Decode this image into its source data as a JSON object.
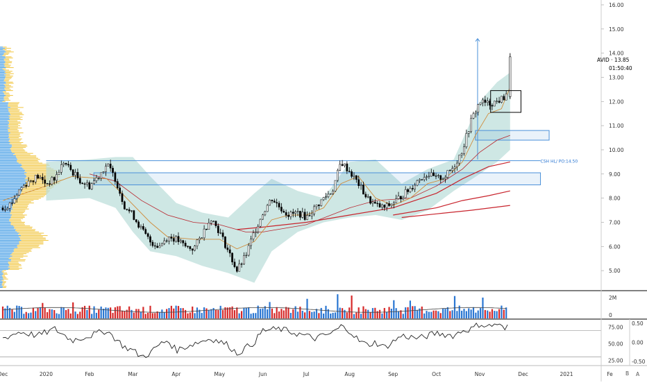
{
  "chart_data": {
    "type": "candlestick",
    "symbol": "AVID",
    "last_price": "13.85",
    "last_price_label": "AVID · 13.85",
    "countdown": "01:50:40",
    "annotation": "CSH HL/ PO:14.50",
    "price_axis": {
      "ticks": [
        "16.00",
        "15.00",
        "14.00",
        "13.00",
        "12.00",
        "11.00",
        "10.00",
        "9.00",
        "8.00",
        "7.00",
        "6.00",
        "5.00"
      ],
      "range": [
        4.2,
        16.2
      ]
    },
    "volume_axis": {
      "ticks": [
        "2M",
        "0"
      ]
    },
    "oscillator_axis_left": {
      "ticks": [
        "75.00",
        "50.00",
        "25.00"
      ],
      "range": [
        18,
        86
      ]
    },
    "oscillator_axis_right": {
      "ticks": [
        "0.50",
        "0.00",
        "-0.50"
      ]
    },
    "x_ticks": [
      "Dec",
      "2020",
      "Feb",
      "Mar",
      "Apr",
      "May",
      "Jun",
      "Jul",
      "Aug",
      "Sep",
      "Oct",
      "Nov",
      "Dec",
      "2021",
      "Fe"
    ],
    "x_range": [
      0,
      13.8
    ],
    "price_path": [
      [
        0.0,
        7.6
      ],
      [
        0.2,
        7.8
      ],
      [
        0.4,
        8.4
      ],
      [
        0.6,
        8.7
      ],
      [
        0.8,
        8.9
      ],
      [
        1.0,
        8.6
      ],
      [
        1.2,
        8.8
      ],
      [
        1.4,
        9.5
      ],
      [
        1.6,
        9.1
      ],
      [
        1.8,
        8.7
      ],
      [
        2.0,
        8.5
      ],
      [
        2.2,
        8.9
      ],
      [
        2.4,
        9.4
      ],
      [
        2.6,
        8.8
      ],
      [
        2.8,
        7.7
      ],
      [
        3.0,
        7.3
      ],
      [
        3.2,
        6.7
      ],
      [
        3.4,
        6.2
      ],
      [
        3.6,
        6.0
      ],
      [
        3.8,
        6.4
      ],
      [
        4.0,
        6.3
      ],
      [
        4.2,
        6.0
      ],
      [
        4.4,
        5.9
      ],
      [
        4.6,
        6.5
      ],
      [
        4.8,
        7.2
      ],
      [
        5.0,
        6.6
      ],
      [
        5.2,
        5.8
      ],
      [
        5.4,
        5.0
      ],
      [
        5.6,
        5.6
      ],
      [
        5.8,
        6.6
      ],
      [
        6.0,
        7.4
      ],
      [
        6.2,
        8.0
      ],
      [
        6.4,
        7.6
      ],
      [
        6.6,
        7.3
      ],
      [
        6.8,
        7.4
      ],
      [
        7.0,
        7.2
      ],
      [
        7.2,
        7.6
      ],
      [
        7.4,
        8.0
      ],
      [
        7.6,
        8.3
      ],
      [
        7.8,
        9.5
      ],
      [
        8.0,
        9.1
      ],
      [
        8.2,
        8.6
      ],
      [
        8.4,
        8.0
      ],
      [
        8.6,
        7.7
      ],
      [
        8.8,
        7.6
      ],
      [
        9.0,
        7.8
      ],
      [
        9.2,
        8.1
      ],
      [
        9.4,
        8.4
      ],
      [
        9.6,
        8.8
      ],
      [
        9.8,
        9.0
      ],
      [
        10.0,
        8.8
      ],
      [
        10.2,
        8.9
      ],
      [
        10.4,
        9.3
      ],
      [
        10.6,
        10.0
      ],
      [
        10.8,
        11.2
      ],
      [
        11.0,
        12.0
      ],
      [
        11.2,
        11.9
      ],
      [
        11.4,
        12.0
      ],
      [
        11.6,
        12.2
      ],
      [
        11.7,
        13.85
      ]
    ],
    "fast_ma": [
      [
        0.0,
        7.9
      ],
      [
        1.0,
        8.5
      ],
      [
        1.6,
        8.9
      ],
      [
        2.4,
        8.8
      ],
      [
        2.8,
        8.1
      ],
      [
        3.4,
        7.0
      ],
      [
        3.8,
        6.4
      ],
      [
        4.4,
        6.3
      ],
      [
        5.0,
        6.3
      ],
      [
        5.4,
        5.9
      ],
      [
        5.8,
        6.2
      ],
      [
        6.2,
        7.1
      ],
      [
        6.6,
        7.3
      ],
      [
        7.0,
        7.3
      ],
      [
        7.4,
        7.6
      ],
      [
        7.8,
        8.6
      ],
      [
        8.2,
        8.9
      ],
      [
        8.6,
        8.0
      ],
      [
        9.0,
        7.7
      ],
      [
        9.4,
        8.0
      ],
      [
        9.8,
        8.6
      ],
      [
        10.2,
        8.8
      ],
      [
        10.6,
        9.5
      ],
      [
        10.9,
        10.6
      ],
      [
        11.2,
        11.5
      ],
      [
        11.5,
        11.7
      ],
      [
        11.7,
        12.6
      ]
    ],
    "ma_red": [
      [
        2.0,
        9.0
      ],
      [
        2.6,
        8.7
      ],
      [
        3.2,
        7.9
      ],
      [
        3.8,
        7.3
      ],
      [
        4.4,
        7.0
      ],
      [
        5.0,
        6.9
      ],
      [
        5.6,
        6.6
      ],
      [
        6.0,
        6.6
      ],
      [
        7.0,
        6.9
      ],
      [
        8.0,
        7.6
      ],
      [
        8.6,
        7.9
      ],
      [
        9.4,
        8.0
      ],
      [
        10.0,
        8.5
      ],
      [
        10.6,
        9.2
      ],
      [
        11.0,
        9.9
      ],
      [
        11.4,
        10.4
      ],
      [
        11.7,
        10.6
      ]
    ],
    "ma_red2": [
      [
        5.4,
        6.7
      ],
      [
        6.0,
        6.8
      ],
      [
        7.0,
        7.0
      ],
      [
        8.0,
        7.3
      ],
      [
        9.0,
        7.6
      ],
      [
        10.0,
        8.2
      ],
      [
        10.6,
        8.8
      ],
      [
        11.2,
        9.3
      ],
      [
        11.7,
        9.5
      ]
    ],
    "ma_red3": [
      [
        9.0,
        7.3
      ],
      [
        10.0,
        7.6
      ],
      [
        10.6,
        7.9
      ],
      [
        11.2,
        8.1
      ],
      [
        11.7,
        8.3
      ]
    ],
    "ma_red4": [
      [
        9.2,
        7.2
      ],
      [
        10.0,
        7.35
      ],
      [
        10.8,
        7.5
      ],
      [
        11.7,
        7.7
      ]
    ],
    "bb_upper": [
      [
        1.0,
        9.5
      ],
      [
        2.0,
        9.6
      ],
      [
        2.6,
        9.7
      ],
      [
        3.0,
        9.7
      ],
      [
        3.4,
        8.9
      ],
      [
        4.0,
        7.8
      ],
      [
        4.6,
        7.4
      ],
      [
        5.2,
        7.2
      ],
      [
        5.8,
        8.2
      ],
      [
        6.2,
        8.8
      ],
      [
        6.8,
        8.3
      ],
      [
        7.4,
        8.0
      ],
      [
        8.0,
        9.5
      ],
      [
        8.6,
        9.6
      ],
      [
        9.2,
        8.6
      ],
      [
        9.8,
        9.2
      ],
      [
        10.4,
        9.6
      ],
      [
        11.0,
        12.0
      ],
      [
        11.4,
        12.8
      ],
      [
        11.7,
        13.2
      ]
    ],
    "bb_lower": [
      [
        1.0,
        7.9
      ],
      [
        2.0,
        8.0
      ],
      [
        2.6,
        7.6
      ],
      [
        3.0,
        6.6
      ],
      [
        3.4,
        5.8
      ],
      [
        4.0,
        5.6
      ],
      [
        4.6,
        5.2
      ],
      [
        5.2,
        4.9
      ],
      [
        5.8,
        4.5
      ],
      [
        6.2,
        5.8
      ],
      [
        6.8,
        6.6
      ],
      [
        7.4,
        7.0
      ],
      [
        8.0,
        7.2
      ],
      [
        8.6,
        7.3
      ],
      [
        9.2,
        7.1
      ],
      [
        9.8,
        7.5
      ],
      [
        10.4,
        8.3
      ],
      [
        11.0,
        9.0
      ],
      [
        11.4,
        9.5
      ],
      [
        11.7,
        10.0
      ]
    ],
    "oscillator": [
      [
        0.0,
        58
      ],
      [
        0.4,
        68
      ],
      [
        0.8,
        62
      ],
      [
        1.2,
        72
      ],
      [
        1.6,
        55
      ],
      [
        2.0,
        62
      ],
      [
        2.4,
        70
      ],
      [
        2.8,
        45
      ],
      [
        3.0,
        40
      ],
      [
        3.2,
        30
      ],
      [
        3.4,
        36
      ],
      [
        3.6,
        48
      ],
      [
        3.8,
        55
      ],
      [
        4.0,
        40
      ],
      [
        4.4,
        50
      ],
      [
        4.8,
        58
      ],
      [
        5.2,
        48
      ],
      [
        5.4,
        35
      ],
      [
        5.8,
        52
      ],
      [
        6.0,
        70
      ],
      [
        6.4,
        72
      ],
      [
        6.8,
        65
      ],
      [
        7.2,
        58
      ],
      [
        7.6,
        66
      ],
      [
        7.8,
        76
      ],
      [
        8.0,
        70
      ],
      [
        8.2,
        55
      ],
      [
        8.4,
        48
      ],
      [
        8.6,
        52
      ],
      [
        8.8,
        44
      ],
      [
        9.2,
        62
      ],
      [
        9.6,
        58
      ],
      [
        10.0,
        66
      ],
      [
        10.4,
        62
      ],
      [
        10.6,
        70
      ],
      [
        10.8,
        72
      ],
      [
        11.0,
        80
      ],
      [
        11.2,
        76
      ],
      [
        11.4,
        80
      ],
      [
        11.6,
        70
      ],
      [
        11.7,
        82
      ]
    ],
    "zones": [
      {
        "x0": 2.1,
        "x1": 12.4,
        "y0": 8.55,
        "y1": 9.05,
        "color": "#4a90d9"
      },
      {
        "x0": 10.9,
        "x1": 12.6,
        "y0": 10.4,
        "y1": 10.8,
        "color": "#4a90d9"
      }
    ],
    "consolidation_box": {
      "x0": 11.25,
      "x1": 11.95,
      "y0": 11.55,
      "y1": 12.45
    },
    "h_line": {
      "x0": 1.0,
      "x1": 12.4,
      "y": 9.55,
      "color": "#4a90d9"
    },
    "target_arrow": {
      "x": 10.95,
      "y0": 9.6,
      "y1": 14.6
    },
    "colors": {
      "up": "#2a76d2",
      "down": "#d62828",
      "wick": "#000000",
      "bb_fill": "#b9ddd9",
      "fast_ma": "#d08c3c",
      "ma": "#c8232c",
      "vp_blue": "#4aa0e6",
      "vp_yellow": "#f2c94c",
      "axis_text": "#333333"
    }
  }
}
